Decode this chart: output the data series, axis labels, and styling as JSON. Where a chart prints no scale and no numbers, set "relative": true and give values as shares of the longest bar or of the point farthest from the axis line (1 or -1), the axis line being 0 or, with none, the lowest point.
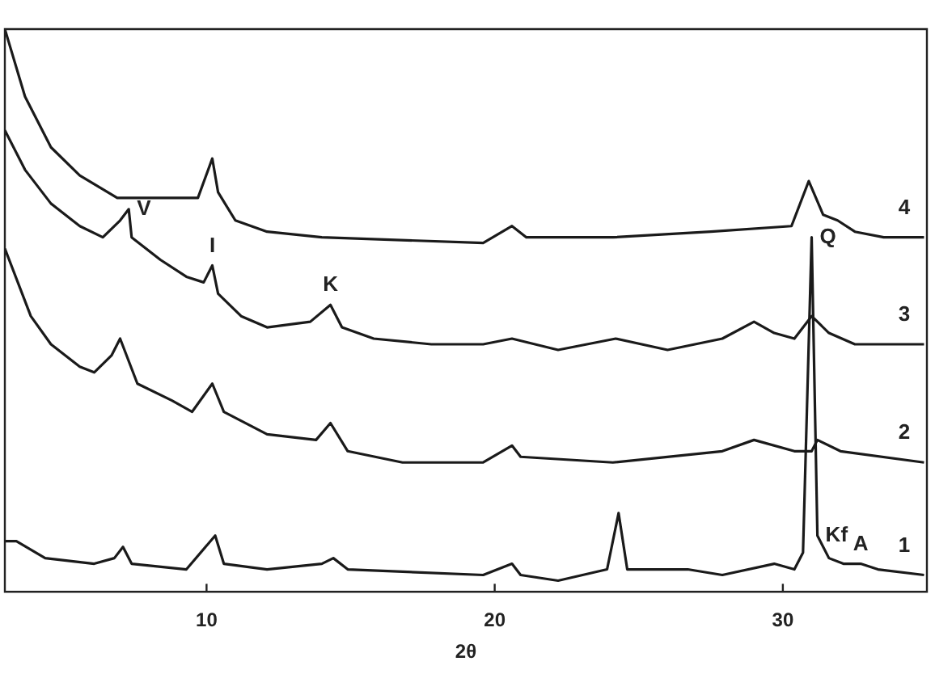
{
  "chart_data": {
    "type": "line",
    "relative": true,
    "xlabel": "2θ",
    "xlim": [
      3,
      35
    ],
    "xticks": [
      10,
      20,
      30
    ],
    "marker": "none",
    "series": [
      {
        "name": "1",
        "color": "#1a1a1a",
        "x": [
          3.0,
          3.4,
          4.4,
          6.1,
          6.8,
          7.1,
          7.4,
          9.3,
          10.3,
          10.6,
          12.1,
          14.0,
          14.4,
          14.9,
          19.6,
          20.6,
          20.9,
          22.2,
          23.9,
          24.3,
          24.6,
          26.7,
          27.9,
          29.7,
          30.4,
          30.7,
          31.0,
          31.2,
          31.6,
          32.1,
          32.7,
          33.3,
          34.9
        ],
        "values": [
          0.09,
          0.09,
          0.06,
          0.05,
          0.06,
          0.08,
          0.05,
          0.04,
          0.1,
          0.05,
          0.04,
          0.05,
          0.06,
          0.04,
          0.03,
          0.05,
          0.03,
          0.02,
          0.04,
          0.14,
          0.04,
          0.04,
          0.03,
          0.05,
          0.04,
          0.07,
          0.63,
          0.1,
          0.06,
          0.05,
          0.05,
          0.04,
          0.03
        ]
      },
      {
        "name": "2",
        "color": "#1a1a1a",
        "x": [
          3.0,
          3.9,
          4.6,
          5.6,
          6.1,
          6.7,
          7.0,
          7.6,
          8.8,
          9.5,
          10.2,
          10.6,
          12.1,
          13.8,
          14.3,
          14.9,
          16.8,
          19.6,
          20.6,
          20.9,
          24.1,
          27.9,
          29.0,
          30.4,
          31.0,
          31.2,
          32.0,
          34.9
        ],
        "values": [
          0.61,
          0.49,
          0.44,
          0.4,
          0.39,
          0.42,
          0.45,
          0.37,
          0.34,
          0.32,
          0.37,
          0.32,
          0.28,
          0.27,
          0.3,
          0.25,
          0.23,
          0.23,
          0.26,
          0.24,
          0.23,
          0.25,
          0.27,
          0.25,
          0.25,
          0.27,
          0.25,
          0.23
        ]
      },
      {
        "name": "3",
        "color": "#1a1a1a",
        "x": [
          3.0,
          3.7,
          4.6,
          5.6,
          6.4,
          7.0,
          7.3,
          7.4,
          8.4,
          9.3,
          9.9,
          10.2,
          10.4,
          11.2,
          12.1,
          13.6,
          14.3,
          14.7,
          15.8,
          17.8,
          19.6,
          20.6,
          22.2,
          24.2,
          26.0,
          27.9,
          29.0,
          29.7,
          30.4,
          31.0,
          31.6,
          32.5,
          34.9
        ],
        "values": [
          0.82,
          0.75,
          0.69,
          0.65,
          0.63,
          0.66,
          0.68,
          0.63,
          0.59,
          0.56,
          0.55,
          0.58,
          0.53,
          0.49,
          0.47,
          0.48,
          0.51,
          0.47,
          0.45,
          0.44,
          0.44,
          0.45,
          0.43,
          0.45,
          0.43,
          0.45,
          0.48,
          0.46,
          0.45,
          0.49,
          0.46,
          0.44,
          0.44
        ]
      },
      {
        "name": "4",
        "color": "#1a1a1a",
        "x": [
          3.0,
          3.7,
          4.6,
          5.6,
          6.9,
          8.4,
          9.7,
          10.2,
          10.4,
          11.0,
          12.1,
          14.0,
          19.6,
          20.6,
          21.1,
          24.1,
          27.5,
          30.3,
          30.9,
          31.4,
          31.9,
          32.5,
          33.5,
          34.9
        ],
        "values": [
          1.0,
          0.88,
          0.79,
          0.74,
          0.7,
          0.7,
          0.7,
          0.77,
          0.71,
          0.66,
          0.64,
          0.63,
          0.62,
          0.65,
          0.63,
          0.63,
          0.64,
          0.65,
          0.73,
          0.67,
          0.66,
          0.64,
          0.63,
          0.63
        ]
      }
    ],
    "annotations": [
      {
        "text": "V",
        "x": 7.3,
        "y": 0.68
      },
      {
        "text": "I",
        "x": 10.2,
        "y": 0.58
      },
      {
        "text": "K",
        "x": 14.3,
        "y": 0.51
      },
      {
        "text": "Q",
        "x": 31.0,
        "y": 0.63
      },
      {
        "text": "Kf",
        "x": 31.2,
        "y": 0.1
      },
      {
        "text": "A",
        "x": 32.7,
        "y": 0.05
      }
    ]
  }
}
